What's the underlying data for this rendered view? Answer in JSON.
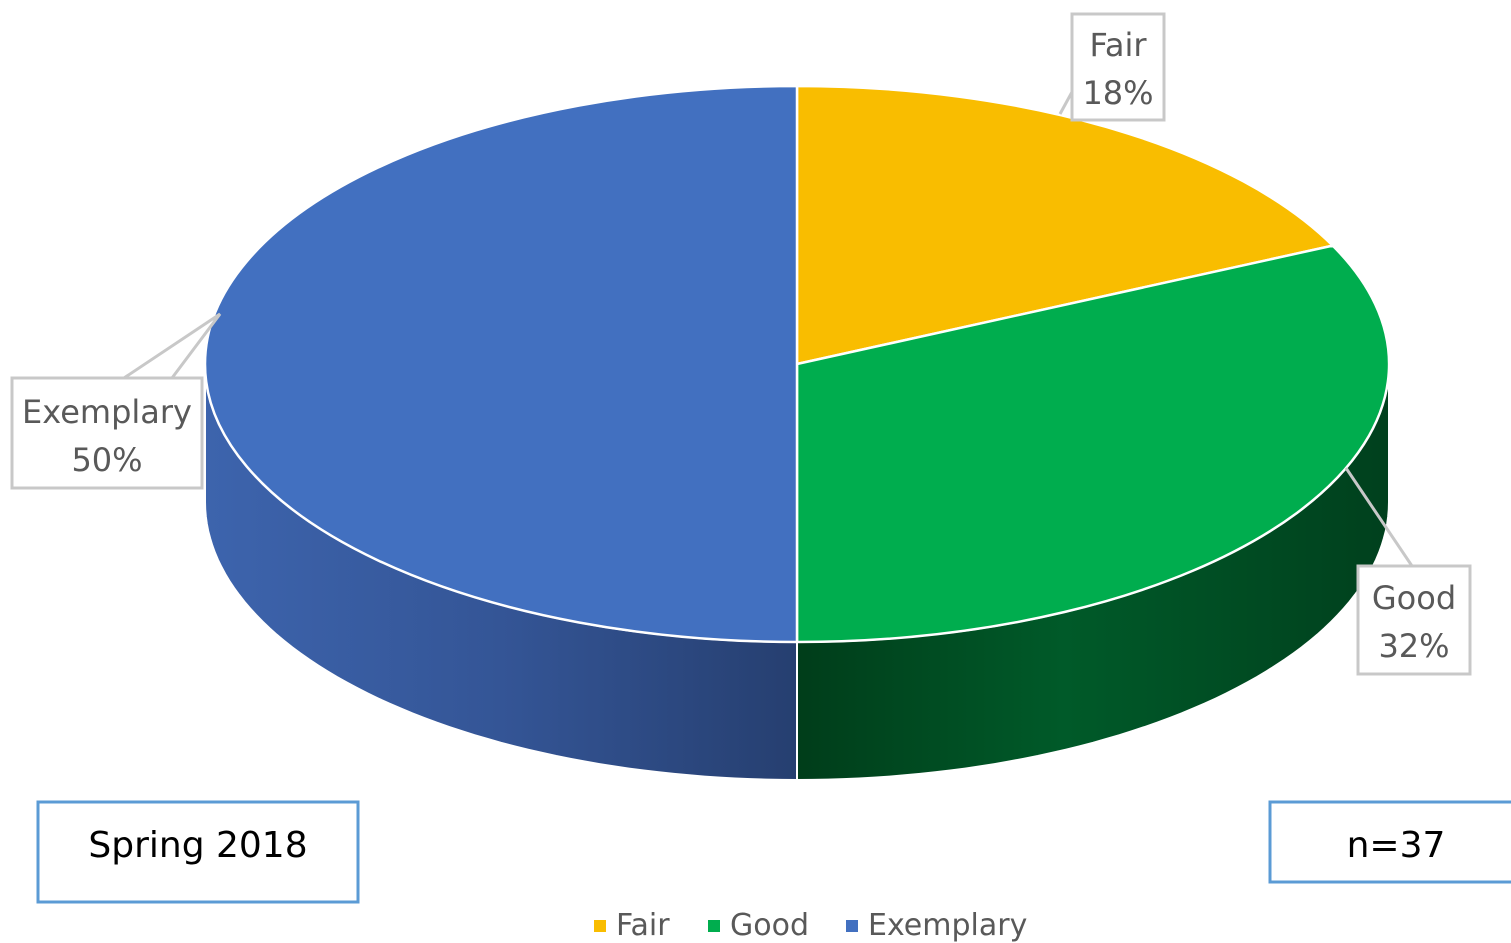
{
  "chart_data": {
    "type": "pie",
    "categories": [
      "Fair",
      "Good",
      "Exemplary"
    ],
    "values": [
      18,
      32,
      50
    ],
    "value_format": "percent",
    "colors": [
      "#f9bd00",
      "#00ad4e",
      "#4270c0"
    ],
    "side_colors": [
      "#8a6900",
      "#004d22",
      "#2e4e8c"
    ],
    "data_labels": [
      {
        "category": "Fair",
        "value": "18%"
      },
      {
        "category": "Good",
        "value": "32%"
      },
      {
        "category": "Exemplary",
        "value": "50%"
      }
    ],
    "legend": {
      "placement": "bottom",
      "entries": [
        "Fair",
        "Good",
        "Exemplary"
      ]
    },
    "three_d": true
  },
  "annotations": {
    "period": "Spring 2018",
    "sample_size": "n=37"
  }
}
